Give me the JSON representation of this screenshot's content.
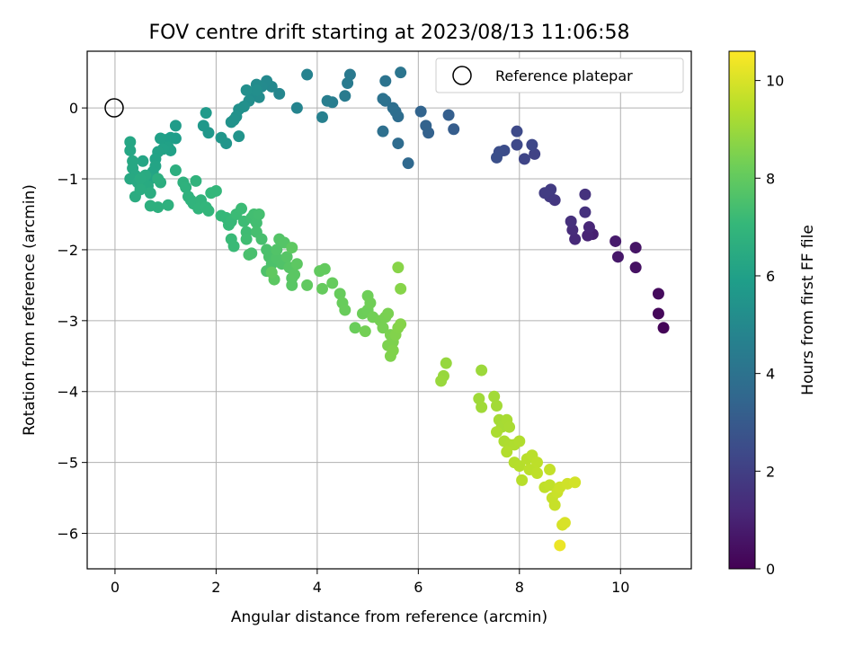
{
  "chart_data": {
    "type": "scatter",
    "title": "FOV centre drift starting at 2023/08/13 11:06:58",
    "xlabel": "Angular distance from reference (arcmin)",
    "ylabel": "Rotation from reference (arcmin)",
    "xlim": [
      -0.55,
      11.4
    ],
    "ylim": [
      -6.5,
      0.8
    ],
    "xticks": [
      0,
      2,
      4,
      6,
      8,
      10
    ],
    "yticks": [
      -6,
      -5,
      -4,
      -3,
      -2,
      -1,
      0
    ],
    "grid": true,
    "legend": {
      "placement": "top-right",
      "entries": [
        {
          "label": "Reference platepar",
          "marker": "open-circle"
        }
      ]
    },
    "reference_point": {
      "x": 0,
      "y": 0
    },
    "colorbar": {
      "label": "Hours from first FF file",
      "min": 0,
      "max": 10.6,
      "ticks": [
        0,
        2,
        4,
        6,
        8,
        10
      ],
      "colormap": [
        "#440154",
        "#482878",
        "#3e4989",
        "#31688e",
        "#26828e",
        "#1f9e89",
        "#35b779",
        "#6ece58",
        "#b5de2b",
        "#fde725"
      ]
    },
    "points": [
      [
        10.85,
        -3.1,
        0.1
      ],
      [
        10.75,
        -2.9,
        0.2
      ],
      [
        10.75,
        -2.62,
        0.3
      ],
      [
        10.3,
        -2.25,
        0.5
      ],
      [
        10.3,
        -1.97,
        0.6
      ],
      [
        9.95,
        -2.1,
        0.7
      ],
      [
        9.9,
        -1.88,
        0.8
      ],
      [
        9.45,
        -1.78,
        0.95
      ],
      [
        9.35,
        -1.8,
        1.05
      ],
      [
        9.38,
        -1.68,
        1.15
      ],
      [
        9.1,
        -1.85,
        1.25
      ],
      [
        9.05,
        -1.72,
        1.35
      ],
      [
        9.02,
        -1.6,
        1.45
      ],
      [
        9.3,
        -1.47,
        1.5
      ],
      [
        9.3,
        -1.22,
        1.55
      ],
      [
        8.7,
        -1.3,
        1.7
      ],
      [
        8.6,
        -1.25,
        1.8
      ],
      [
        8.62,
        -1.15,
        1.85
      ],
      [
        8.5,
        -1.2,
        1.9
      ],
      [
        8.3,
        -0.65,
        2.1
      ],
      [
        8.1,
        -0.72,
        2.2
      ],
      [
        8.25,
        -0.52,
        2.3
      ],
      [
        7.95,
        -0.52,
        2.35
      ],
      [
        7.95,
        -0.33,
        2.4
      ],
      [
        7.7,
        -0.6,
        2.5
      ],
      [
        7.6,
        -0.62,
        2.55
      ],
      [
        7.55,
        -0.7,
        2.6
      ],
      [
        6.7,
        -0.3,
        3.1
      ],
      [
        6.6,
        -0.1,
        3.2
      ],
      [
        6.2,
        -0.35,
        3.3
      ],
      [
        6.15,
        -0.25,
        3.35
      ],
      [
        6.05,
        -0.05,
        3.4
      ],
      [
        5.8,
        -0.78,
        3.6
      ],
      [
        5.6,
        -0.5,
        3.7
      ],
      [
        5.6,
        -0.12,
        3.75
      ],
      [
        5.55,
        -0.05,
        3.8
      ],
      [
        5.5,
        0.0,
        3.85
      ],
      [
        5.3,
        -0.33,
        3.9
      ],
      [
        5.35,
        0.1,
        3.95
      ],
      [
        5.3,
        0.13,
        4.0
      ],
      [
        5.35,
        0.38,
        4.05
      ],
      [
        5.65,
        0.5,
        4.1
      ],
      [
        4.65,
        0.47,
        4.3
      ],
      [
        4.6,
        0.35,
        4.35
      ],
      [
        4.55,
        0.17,
        4.4
      ],
      [
        4.3,
        0.08,
        4.5
      ],
      [
        4.2,
        0.1,
        4.55
      ],
      [
        4.1,
        -0.13,
        4.6
      ],
      [
        3.8,
        0.47,
        4.7
      ],
      [
        3.6,
        0.0,
        4.8
      ],
      [
        3.25,
        0.2,
        4.9
      ],
      [
        3.1,
        0.3,
        4.95
      ],
      [
        3.0,
        0.38,
        5.0
      ],
      [
        2.9,
        0.3,
        5.05
      ],
      [
        2.8,
        0.33,
        5.1
      ],
      [
        2.85,
        0.15,
        5.12
      ],
      [
        2.7,
        0.2,
        5.15
      ],
      [
        2.65,
        0.1,
        5.2
      ],
      [
        2.8,
        0.25,
        5.22
      ],
      [
        2.6,
        0.25,
        5.25
      ],
      [
        2.55,
        0.02,
        5.3
      ],
      [
        2.45,
        -0.02,
        5.32
      ],
      [
        2.4,
        -0.12,
        5.35
      ],
      [
        2.35,
        -0.17,
        5.37
      ],
      [
        2.3,
        -0.2,
        5.4
      ],
      [
        2.45,
        -0.4,
        5.45
      ],
      [
        2.2,
        -0.5,
        5.5
      ],
      [
        2.1,
        -0.42,
        5.55
      ],
      [
        1.85,
        -0.35,
        5.6
      ],
      [
        1.75,
        -0.25,
        5.65
      ],
      [
        1.8,
        -0.07,
        5.7
      ],
      [
        1.2,
        -0.25,
        5.8
      ],
      [
        1.2,
        -0.43,
        5.85
      ],
      [
        1.1,
        -0.42,
        5.9
      ],
      [
        1.0,
        -0.45,
        5.95
      ],
      [
        0.9,
        -0.43,
        6.0
      ],
      [
        1.05,
        -0.55,
        6.02
      ],
      [
        1.1,
        -0.6,
        6.05
      ],
      [
        0.95,
        -0.58,
        6.07
      ],
      [
        0.85,
        -0.62,
        6.1
      ],
      [
        0.8,
        -0.72,
        6.12
      ],
      [
        0.8,
        -0.82,
        6.15
      ],
      [
        0.75,
        -0.9,
        6.17
      ],
      [
        0.7,
        -1.0,
        6.2
      ],
      [
        0.55,
        -0.75,
        6.22
      ],
      [
        0.3,
        -0.48,
        6.25
      ],
      [
        0.3,
        -0.6,
        6.27
      ],
      [
        0.35,
        -0.75,
        6.3
      ],
      [
        0.35,
        -0.85,
        6.32
      ],
      [
        0.4,
        -0.95,
        6.35
      ],
      [
        0.3,
        -1.0,
        6.37
      ],
      [
        0.45,
        -1.05,
        6.4
      ],
      [
        0.55,
        -1.05,
        6.42
      ],
      [
        0.65,
        -1.1,
        6.45
      ],
      [
        0.6,
        -0.95,
        6.47
      ],
      [
        0.5,
        -1.0,
        6.5
      ],
      [
        0.4,
        -1.25,
        6.52
      ],
      [
        0.5,
        -1.15,
        6.55
      ],
      [
        0.7,
        -1.2,
        6.57
      ],
      [
        0.9,
        -1.05,
        6.6
      ],
      [
        1.2,
        -0.88,
        6.62
      ],
      [
        0.85,
        -1.0,
        6.65
      ],
      [
        0.85,
        -1.4,
        6.67
      ],
      [
        0.7,
        -1.38,
        6.7
      ],
      [
        1.05,
        -1.37,
        6.72
      ],
      [
        1.35,
        -1.05,
        6.75
      ],
      [
        1.4,
        -1.12,
        6.77
      ],
      [
        1.45,
        -1.25,
        6.8
      ],
      [
        1.5,
        -1.3,
        6.82
      ],
      [
        1.6,
        -1.03,
        6.85
      ],
      [
        1.55,
        -1.35,
        6.87
      ],
      [
        1.7,
        -1.3,
        6.9
      ],
      [
        1.65,
        -1.42,
        6.92
      ],
      [
        1.8,
        -1.4,
        6.95
      ],
      [
        1.85,
        -1.45,
        6.97
      ],
      [
        1.9,
        -1.2,
        7.0
      ],
      [
        2.0,
        -1.17,
        7.02
      ],
      [
        2.1,
        -1.52,
        7.05
      ],
      [
        2.2,
        -1.55,
        7.07
      ],
      [
        2.25,
        -1.65,
        7.1
      ],
      [
        2.3,
        -1.6,
        7.12
      ],
      [
        2.3,
        -1.85,
        7.15
      ],
      [
        2.35,
        -1.95,
        7.17
      ],
      [
        2.4,
        -1.5,
        7.2
      ],
      [
        2.5,
        -1.42,
        7.22
      ],
      [
        2.55,
        -1.6,
        7.25
      ],
      [
        2.6,
        -1.75,
        7.27
      ],
      [
        2.6,
        -1.85,
        7.3
      ],
      [
        2.7,
        -1.55,
        7.32
      ],
      [
        2.75,
        -1.5,
        7.35
      ],
      [
        2.8,
        -1.62,
        7.37
      ],
      [
        2.85,
        -1.5,
        7.4
      ],
      [
        2.8,
        -1.75,
        7.42
      ],
      [
        2.9,
        -1.85,
        7.45
      ],
      [
        2.7,
        -2.05,
        7.47
      ],
      [
        2.65,
        -2.07,
        7.5
      ],
      [
        3.0,
        -2.0,
        7.52
      ],
      [
        3.05,
        -2.1,
        7.55
      ],
      [
        3.1,
        -2.2,
        7.57
      ],
      [
        3.0,
        -2.3,
        7.6
      ],
      [
        3.2,
        -2.12,
        7.62
      ],
      [
        3.3,
        -2.2,
        7.65
      ],
      [
        3.2,
        -2.0,
        7.67
      ],
      [
        3.25,
        -1.85,
        7.7
      ],
      [
        3.35,
        -1.9,
        7.72
      ],
      [
        3.4,
        -2.1,
        7.75
      ],
      [
        3.45,
        -2.25,
        7.77
      ],
      [
        3.5,
        -2.4,
        7.8
      ],
      [
        3.5,
        -2.5,
        7.82
      ],
      [
        3.55,
        -2.35,
        7.85
      ],
      [
        3.15,
        -2.42,
        7.87
      ],
      [
        3.6,
        -2.2,
        7.9
      ],
      [
        3.5,
        -1.97,
        7.92
      ],
      [
        3.1,
        -2.32,
        7.95
      ],
      [
        3.8,
        -2.5,
        7.97
      ],
      [
        4.05,
        -2.3,
        8.0
      ],
      [
        4.15,
        -2.27,
        8.02
      ],
      [
        4.1,
        -2.55,
        8.05
      ],
      [
        4.3,
        -2.47,
        8.07
      ],
      [
        4.45,
        -2.62,
        8.1
      ],
      [
        4.5,
        -2.75,
        8.12
      ],
      [
        4.55,
        -2.85,
        8.15
      ],
      [
        4.75,
        -3.1,
        8.17
      ],
      [
        4.9,
        -2.9,
        8.2
      ],
      [
        5.0,
        -2.85,
        8.22
      ],
      [
        5.0,
        -2.65,
        8.25
      ],
      [
        5.05,
        -2.75,
        8.27
      ],
      [
        5.1,
        -2.95,
        8.3
      ],
      [
        4.95,
        -3.15,
        8.32
      ],
      [
        5.25,
        -3.0,
        8.35
      ],
      [
        5.3,
        -3.1,
        8.37
      ],
      [
        5.35,
        -2.95,
        8.4
      ],
      [
        5.4,
        -2.9,
        8.42
      ],
      [
        5.45,
        -3.2,
        8.45
      ],
      [
        5.4,
        -3.35,
        8.47
      ],
      [
        5.5,
        -3.3,
        8.5
      ],
      [
        5.45,
        -3.5,
        8.52
      ],
      [
        5.5,
        -3.42,
        8.55
      ],
      [
        5.55,
        -3.2,
        8.57
      ],
      [
        5.6,
        -3.1,
        8.6
      ],
      [
        5.65,
        -3.05,
        8.62
      ],
      [
        5.65,
        -2.55,
        8.65
      ],
      [
        5.6,
        -2.25,
        8.67
      ],
      [
        6.55,
        -3.6,
        8.9
      ],
      [
        6.5,
        -3.78,
        8.92
      ],
      [
        6.45,
        -3.85,
        8.95
      ],
      [
        7.25,
        -3.7,
        9.0
      ],
      [
        7.2,
        -4.1,
        9.05
      ],
      [
        7.25,
        -4.22,
        9.07
      ],
      [
        7.5,
        -4.07,
        9.1
      ],
      [
        7.55,
        -4.2,
        9.12
      ],
      [
        7.6,
        -4.4,
        9.15
      ],
      [
        7.65,
        -4.5,
        9.17
      ],
      [
        7.75,
        -4.4,
        9.2
      ],
      [
        7.8,
        -4.5,
        9.22
      ],
      [
        7.55,
        -4.57,
        9.25
      ],
      [
        7.7,
        -4.7,
        9.27
      ],
      [
        7.8,
        -4.75,
        9.3
      ],
      [
        7.9,
        -4.75,
        9.32
      ],
      [
        8.0,
        -4.7,
        9.35
      ],
      [
        7.75,
        -4.85,
        9.37
      ],
      [
        7.9,
        -5.0,
        9.4
      ],
      [
        8.0,
        -5.05,
        9.42
      ],
      [
        8.05,
        -5.25,
        9.45
      ],
      [
        8.15,
        -4.95,
        9.47
      ],
      [
        8.25,
        -4.9,
        9.5
      ],
      [
        8.2,
        -5.1,
        9.52
      ],
      [
        8.35,
        -5.0,
        9.55
      ],
      [
        8.35,
        -5.15,
        9.57
      ],
      [
        8.5,
        -5.35,
        9.6
      ],
      [
        8.6,
        -5.32,
        9.62
      ],
      [
        8.6,
        -5.1,
        9.65
      ],
      [
        8.65,
        -5.5,
        9.7
      ],
      [
        8.7,
        -5.6,
        9.72
      ],
      [
        8.75,
        -5.42,
        9.75
      ],
      [
        8.8,
        -5.35,
        9.8
      ],
      [
        8.95,
        -5.3,
        9.85
      ],
      [
        9.1,
        -5.28,
        9.9
      ],
      [
        8.85,
        -5.88,
        9.95
      ],
      [
        8.9,
        -5.85,
        10.0
      ],
      [
        8.8,
        -6.17,
        10.3
      ]
    ]
  }
}
